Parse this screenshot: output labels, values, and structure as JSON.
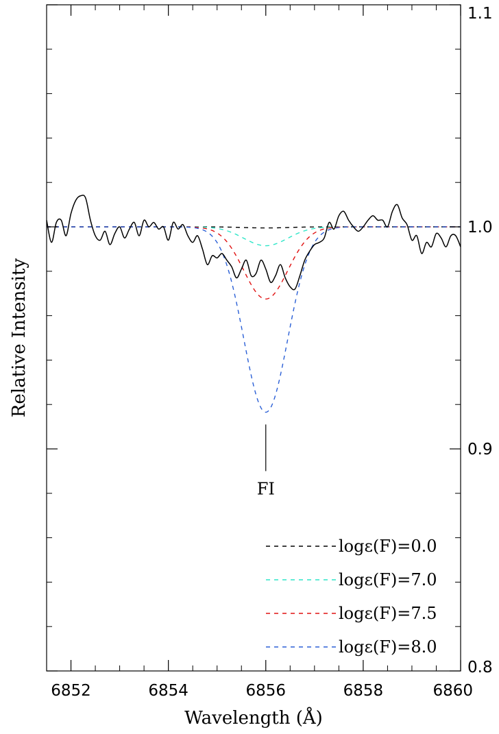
{
  "chart_data": {
    "type": "line",
    "title": "",
    "xlabel": "Wavelength (Å)",
    "ylabel": "Relative Intensity",
    "xlim": [
      6851.5,
      6860
    ],
    "ylim": [
      0.8,
      1.1
    ],
    "x_ticks": [
      6852,
      6854,
      6856,
      6858,
      6860
    ],
    "x_tick_labels": [
      "6852",
      "6854",
      "6856",
      "6858",
      "6860"
    ],
    "y_ticks": [
      0.8,
      0.9,
      1.0,
      1.1
    ],
    "y_tick_labels": [
      "0.8",
      "0.9",
      "1.0",
      "1.1"
    ],
    "y_axis_labels_side": "right",
    "grid": false,
    "legend_position": "bottom-right",
    "annotation": {
      "text": "FI",
      "x": 6856.0,
      "y_top": 0.911,
      "y_bottom": 0.89
    },
    "observed": {
      "color": "#000000",
      "x": [
        6851.5,
        6851.6,
        6851.7,
        6851.8,
        6851.9,
        6852.0,
        6852.1,
        6852.2,
        6852.3,
        6852.4,
        6852.5,
        6852.6,
        6852.7,
        6852.8,
        6852.9,
        6853.0,
        6853.1,
        6853.2,
        6853.3,
        6853.4,
        6853.5,
        6853.6,
        6853.7,
        6853.8,
        6853.9,
        6854.0,
        6854.1,
        6854.2,
        6854.3,
        6854.4,
        6854.5,
        6854.6,
        6854.7,
        6854.8,
        6854.9,
        6855.0,
        6855.1,
        6855.2,
        6855.3,
        6855.4,
        6855.5,
        6855.6,
        6855.7,
        6855.8,
        6855.9,
        6856.0,
        6856.1,
        6856.2,
        6856.3,
        6856.4,
        6856.5,
        6856.6,
        6856.7,
        6856.8,
        6856.9,
        6857.0,
        6857.1,
        6857.2,
        6857.3,
        6857.4,
        6857.5,
        6857.6,
        6857.7,
        6857.8,
        6857.9,
        6858.0,
        6858.1,
        6858.2,
        6858.3,
        6858.4,
        6858.5,
        6858.6,
        6858.7,
        6858.8,
        6858.9,
        6859.0,
        6859.1,
        6859.2,
        6859.3,
        6859.4,
        6859.5,
        6859.6,
        6859.7,
        6859.8,
        6859.9,
        6860.0
      ],
      "y": [
        1.003,
        0.993,
        1.002,
        1.003,
        0.996,
        1.006,
        1.012,
        1.014,
        1.013,
        1.003,
        0.996,
        0.994,
        0.998,
        0.992,
        0.997,
        1.0,
        0.995,
        0.999,
        1.002,
        0.996,
        1.003,
        1.0,
        1.002,
        0.999,
        1.0,
        0.994,
        1.002,
        0.999,
        1.001,
        0.996,
        0.993,
        0.996,
        0.99,
        0.983,
        0.987,
        0.986,
        0.988,
        0.985,
        0.982,
        0.977,
        0.981,
        0.985,
        0.978,
        0.979,
        0.985,
        0.981,
        0.975,
        0.978,
        0.983,
        0.977,
        0.973,
        0.972,
        0.978,
        0.985,
        0.989,
        0.992,
        0.993,
        0.995,
        1.002,
        0.999,
        1.005,
        1.007,
        1.003,
        1.0,
        0.998,
        1.0,
        1.003,
        1.005,
        1.003,
        1.003,
        1.0,
        1.007,
        1.01,
        1.004,
        1.001,
        0.994,
        0.996,
        0.988,
        0.993,
        0.991,
        0.997,
        0.995,
        0.991,
        0.996,
        0.996,
        0.991
      ]
    },
    "series": [
      {
        "name": "logε(F)=0.0",
        "color": "#000000",
        "depth": 0.0005,
        "dash": "6,6"
      },
      {
        "name": "logε(F)=7.0",
        "color": "#2ee6c8",
        "depth": 0.0085,
        "dash": "6,6"
      },
      {
        "name": "logε(F)=7.5",
        "color": "#e01010",
        "depth": 0.0325,
        "dash": "6,6"
      },
      {
        "name": "logε(F)=8.0",
        "color": "#2a5fd6",
        "depth": 0.0835,
        "dash": "6,6"
      }
    ],
    "line_center": 6856.0,
    "line_width_sigma": 0.45
  }
}
